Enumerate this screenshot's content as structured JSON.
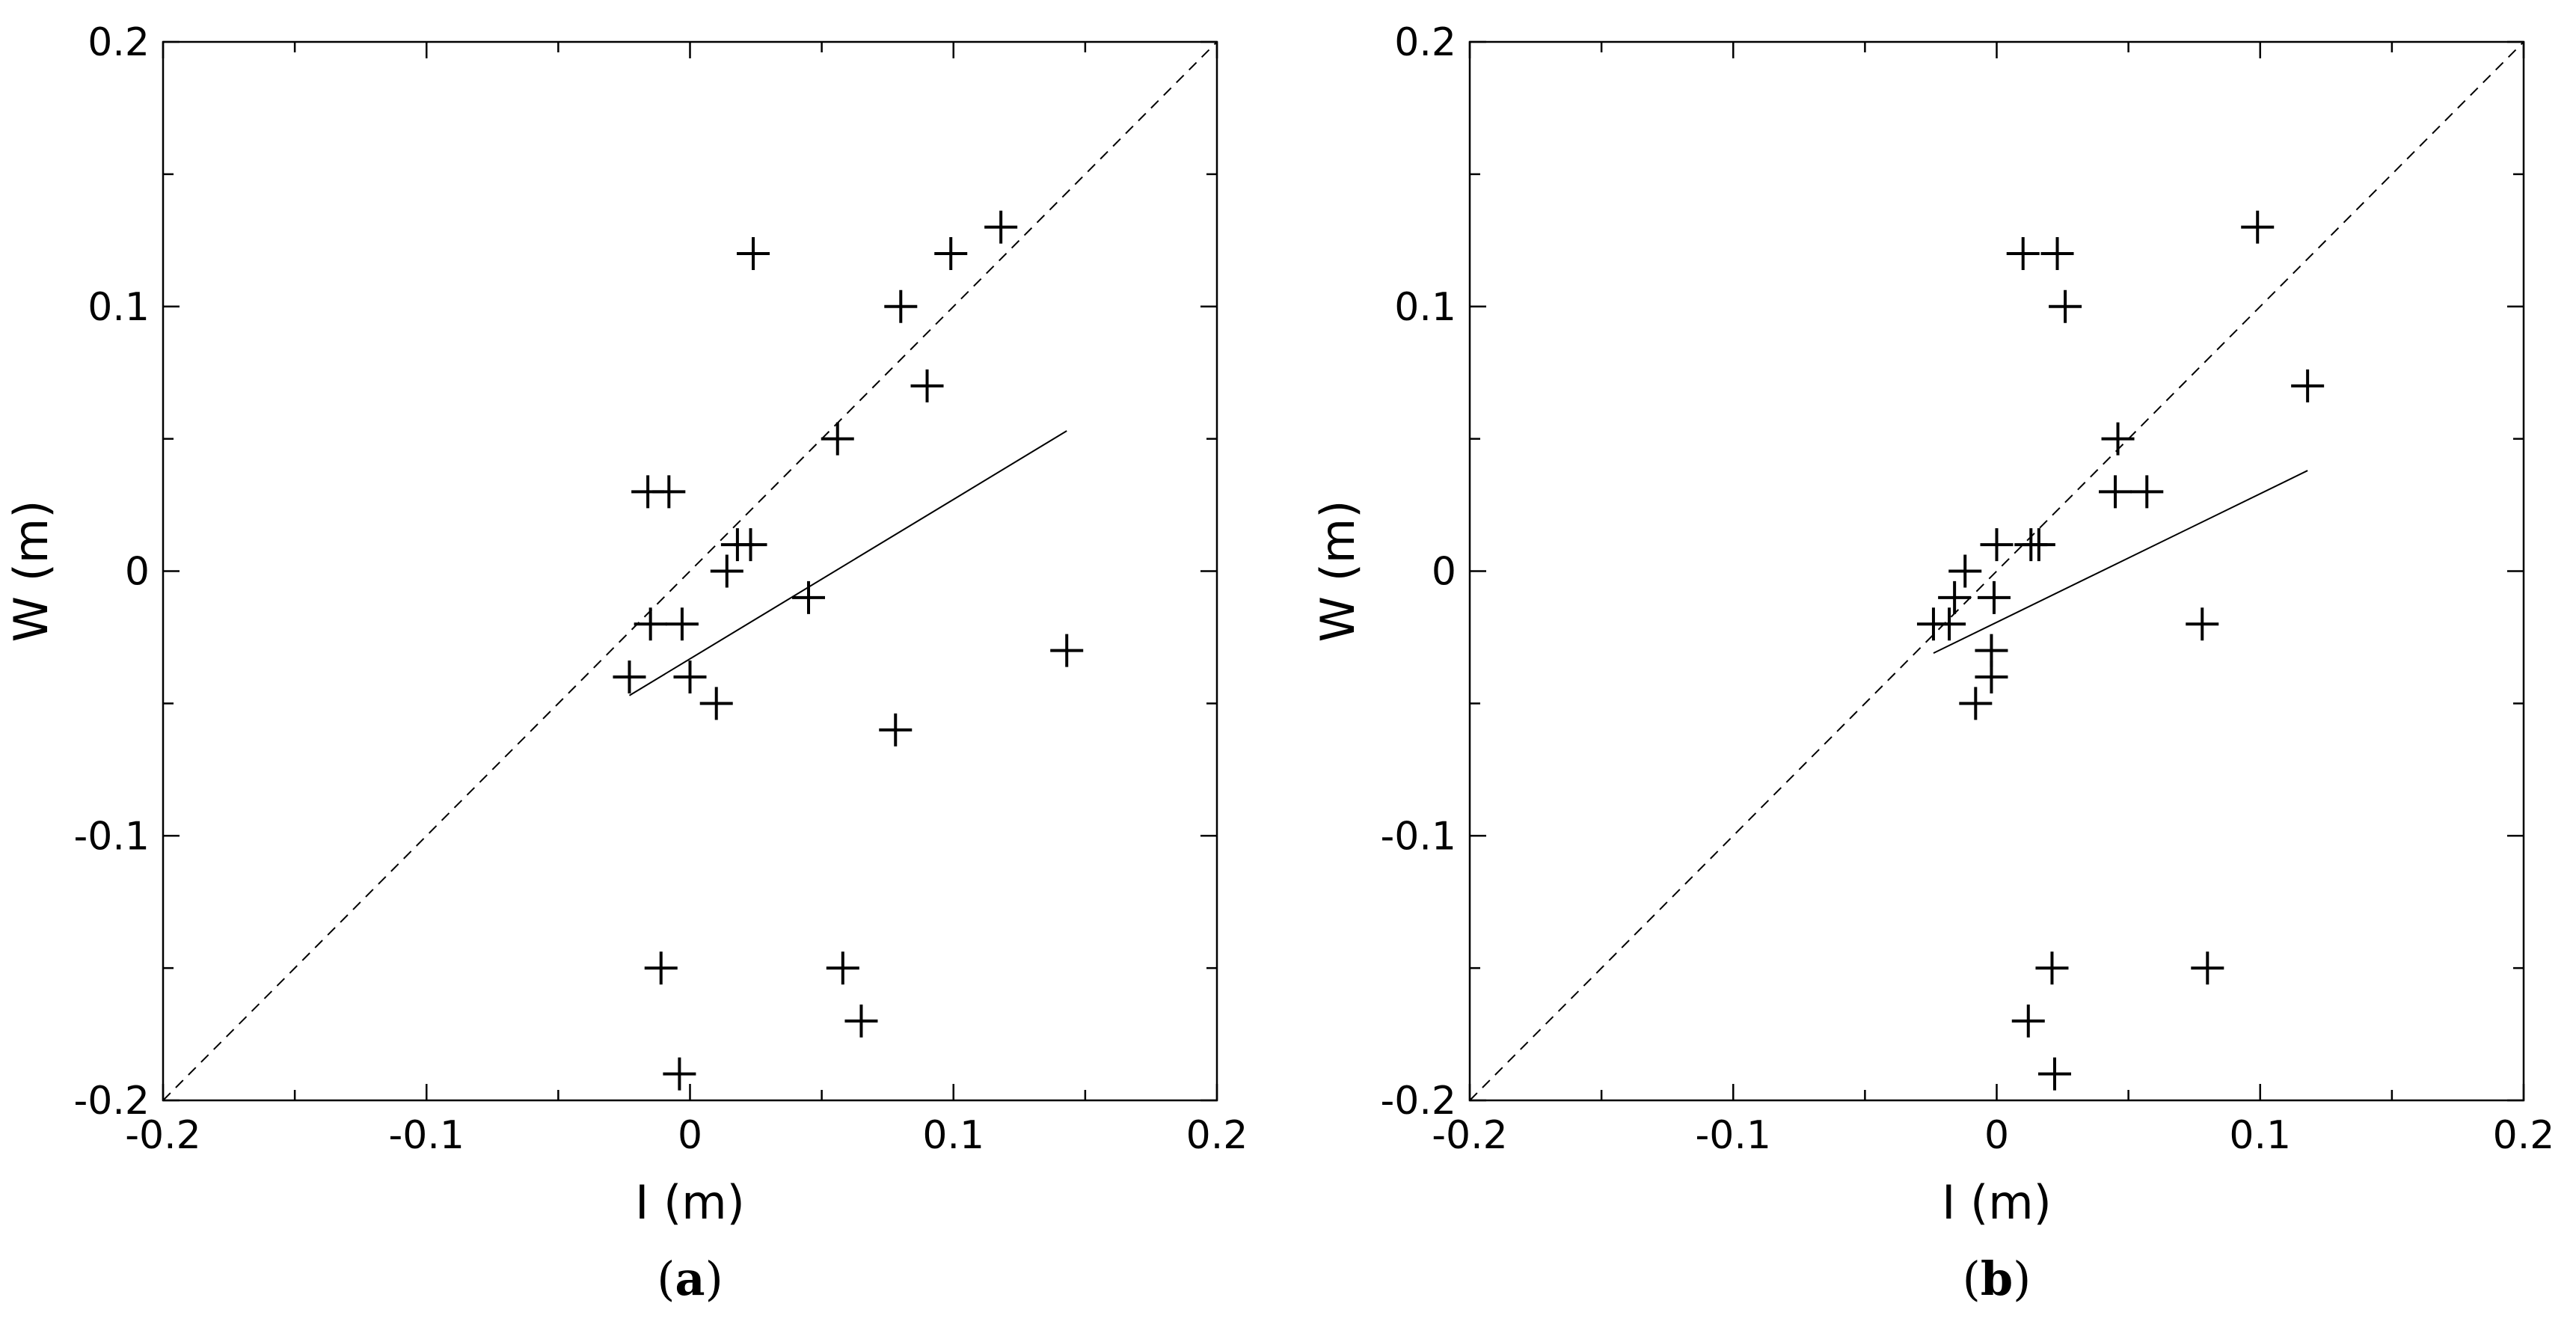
{
  "chart_data": [
    {
      "type": "scatter",
      "panel_label": "a",
      "xlabel": "I (m)",
      "ylabel": "W (m)",
      "xlim": [
        -0.2,
        0.2
      ],
      "ylim": [
        -0.2,
        0.2
      ],
      "xticks": [
        -0.2,
        -0.1,
        0,
        0.1,
        0.2
      ],
      "yticks": [
        -0.2,
        -0.1,
        0,
        0.1,
        0.2
      ],
      "xtick_labels": [
        "-0.2",
        "-0.1",
        "0",
        "0.1",
        "0.2"
      ],
      "ytick_labels": [
        "-0.2",
        "-0.1",
        "0",
        "0.1",
        "0.2"
      ],
      "marker": "+",
      "points": [
        {
          "x": 0.118,
          "y": 0.13
        },
        {
          "x": 0.099,
          "y": 0.12
        },
        {
          "x": 0.024,
          "y": 0.12
        },
        {
          "x": 0.08,
          "y": 0.1
        },
        {
          "x": 0.09,
          "y": 0.07
        },
        {
          "x": 0.056,
          "y": 0.05
        },
        {
          "x": -0.016,
          "y": 0.03
        },
        {
          "x": -0.008,
          "y": 0.03
        },
        {
          "x": 0.018,
          "y": 0.01
        },
        {
          "x": 0.023,
          "y": 0.01
        },
        {
          "x": 0.014,
          "y": 0.0
        },
        {
          "x": 0.045,
          "y": -0.01
        },
        {
          "x": -0.015,
          "y": -0.02
        },
        {
          "x": -0.003,
          "y": -0.02
        },
        {
          "x": -0.023,
          "y": -0.04
        },
        {
          "x": 0.0,
          "y": -0.04
        },
        {
          "x": 0.01,
          "y": -0.05
        },
        {
          "x": 0.143,
          "y": -0.03
        },
        {
          "x": 0.078,
          "y": -0.06
        },
        {
          "x": -0.011,
          "y": -0.15
        },
        {
          "x": 0.058,
          "y": -0.15
        },
        {
          "x": 0.065,
          "y": -0.17
        },
        {
          "x": -0.004,
          "y": -0.19
        }
      ],
      "reference_line": {
        "style": "dashed",
        "x": [
          -0.2,
          0.2
        ],
        "y": [
          -0.2,
          0.2
        ]
      },
      "fit_line": {
        "style": "solid",
        "x": [
          -0.023,
          0.143
        ],
        "y": [
          -0.047,
          0.053
        ]
      }
    },
    {
      "type": "scatter",
      "panel_label": "b",
      "xlabel": "I (m)",
      "ylabel": "W (m)",
      "xlim": [
        -0.2,
        0.2
      ],
      "ylim": [
        -0.2,
        0.2
      ],
      "xticks": [
        -0.2,
        -0.1,
        0,
        0.1,
        0.2
      ],
      "yticks": [
        -0.2,
        -0.1,
        0,
        0.1,
        0.2
      ],
      "xtick_labels": [
        "-0.2",
        "-0.1",
        "0",
        "0.1",
        "0.2"
      ],
      "ytick_labels": [
        "-0.2",
        "-0.1",
        "0",
        "0.1",
        "0.2"
      ],
      "marker": "+",
      "points": [
        {
          "x": 0.099,
          "y": 0.13
        },
        {
          "x": 0.01,
          "y": 0.12
        },
        {
          "x": 0.023,
          "y": 0.12
        },
        {
          "x": 0.026,
          "y": 0.1
        },
        {
          "x": 0.118,
          "y": 0.07
        },
        {
          "x": 0.046,
          "y": 0.05
        },
        {
          "x": 0.045,
          "y": 0.03
        },
        {
          "x": 0.057,
          "y": 0.03
        },
        {
          "x": 0.0,
          "y": 0.01
        },
        {
          "x": 0.013,
          "y": 0.01
        },
        {
          "x": 0.016,
          "y": 0.01
        },
        {
          "x": -0.012,
          "y": 0.0
        },
        {
          "x": -0.016,
          "y": -0.01
        },
        {
          "x": -0.001,
          "y": -0.01
        },
        {
          "x": -0.024,
          "y": -0.02
        },
        {
          "x": -0.018,
          "y": -0.02
        },
        {
          "x": 0.078,
          "y": -0.02
        },
        {
          "x": -0.002,
          "y": -0.03
        },
        {
          "x": -0.002,
          "y": -0.04
        },
        {
          "x": -0.008,
          "y": -0.05
        },
        {
          "x": 0.021,
          "y": -0.15
        },
        {
          "x": 0.08,
          "y": -0.15
        },
        {
          "x": 0.012,
          "y": -0.17
        },
        {
          "x": 0.022,
          "y": -0.19
        }
      ],
      "reference_line": {
        "style": "dashed",
        "x": [
          -0.2,
          0.2
        ],
        "y": [
          -0.2,
          0.2
        ]
      },
      "fit_line": {
        "style": "solid",
        "x": [
          -0.024,
          0.118
        ],
        "y": [
          -0.031,
          0.038
        ]
      }
    }
  ]
}
